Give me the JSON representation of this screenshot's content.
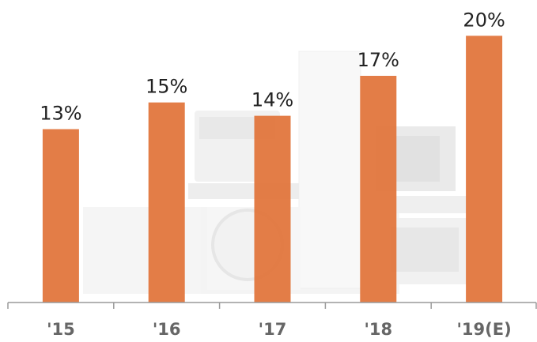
{
  "chart_data": {
    "type": "bar",
    "categories": [
      "'15",
      "'16",
      "'17",
      "'18",
      "'19(E)"
    ],
    "values": [
      13,
      15,
      14,
      17,
      20
    ],
    "value_labels": [
      "13%",
      "15%",
      "14%",
      "17%",
      "20%"
    ],
    "unit": "%",
    "ylim": [
      0,
      21.5
    ],
    "title": "",
    "xlabel": "",
    "ylabel": "",
    "grid": false,
    "legend": "none",
    "colors": {
      "bar": "#E2763D",
      "axis": "#9a9a9a",
      "value_text": "#222222",
      "category_text": "#666666",
      "background_art": "#dcdcdc"
    }
  }
}
